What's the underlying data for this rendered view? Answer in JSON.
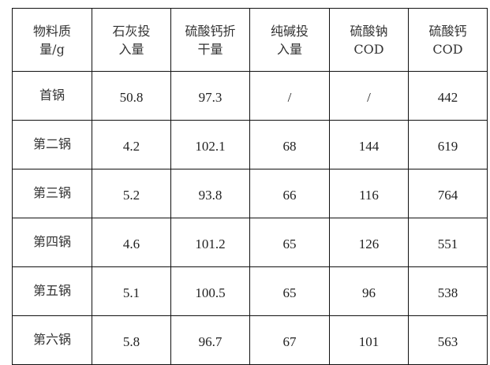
{
  "table": {
    "headers": [
      [
        "物料质",
        "量/g"
      ],
      [
        "石灰投",
        "入量"
      ],
      [
        "硫酸钙折",
        "干量"
      ],
      [
        "纯碱投",
        "入量"
      ],
      [
        "硫酸钠",
        "COD"
      ],
      [
        "硫酸钙",
        "COD"
      ]
    ],
    "rows": [
      [
        "首锅",
        "50.8",
        "97.3",
        "/",
        "/",
        "442"
      ],
      [
        "第二锅",
        "4.2",
        "102.1",
        "68",
        "144",
        "619"
      ],
      [
        "第三锅",
        "5.2",
        "93.8",
        "66",
        "116",
        "764"
      ],
      [
        "第四锅",
        "4.6",
        "101.2",
        "65",
        "126",
        "551"
      ],
      [
        "第五锅",
        "5.1",
        "100.5",
        "65",
        "96",
        "538"
      ],
      [
        "第六锅",
        "5.8",
        "96.7",
        "67",
        "101",
        "563"
      ]
    ]
  }
}
